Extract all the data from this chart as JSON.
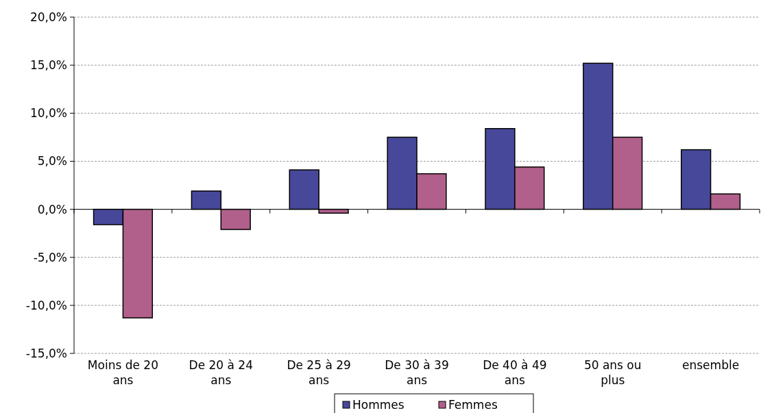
{
  "chart_data": {
    "type": "bar",
    "categories": [
      "Moins de 20 ans",
      "De 20 à 24 ans",
      "De 25 à 29 ans",
      "De 30 à 39 ans",
      "De 40 à 49 ans",
      "50 ans ou plus",
      "ensemble"
    ],
    "series": [
      {
        "name": "Hommes",
        "color": "#48489a",
        "values": [
          -1.6,
          1.9,
          4.1,
          7.5,
          8.4,
          15.2,
          6.2
        ]
      },
      {
        "name": "Femmes",
        "color": "#b0608a",
        "values": [
          -11.3,
          -2.1,
          -0.4,
          3.7,
          4.4,
          7.5,
          1.6
        ]
      }
    ],
    "ylim": [
      -15,
      20
    ],
    "yticks": [
      {
        "value": -15,
        "label": "-15,0%"
      },
      {
        "value": -10,
        "label": "-10,0%"
      },
      {
        "value": -5,
        "label": "-5,0%"
      },
      {
        "value": 0,
        "label": "0,0%"
      },
      {
        "value": 5,
        "label": "5,0%"
      },
      {
        "value": 10,
        "label": "10,0%"
      },
      {
        "value": 15,
        "label": "15,0%"
      },
      {
        "value": 20,
        "label": "20,0%"
      }
    ],
    "grid": "y",
    "legend": "bottom"
  }
}
